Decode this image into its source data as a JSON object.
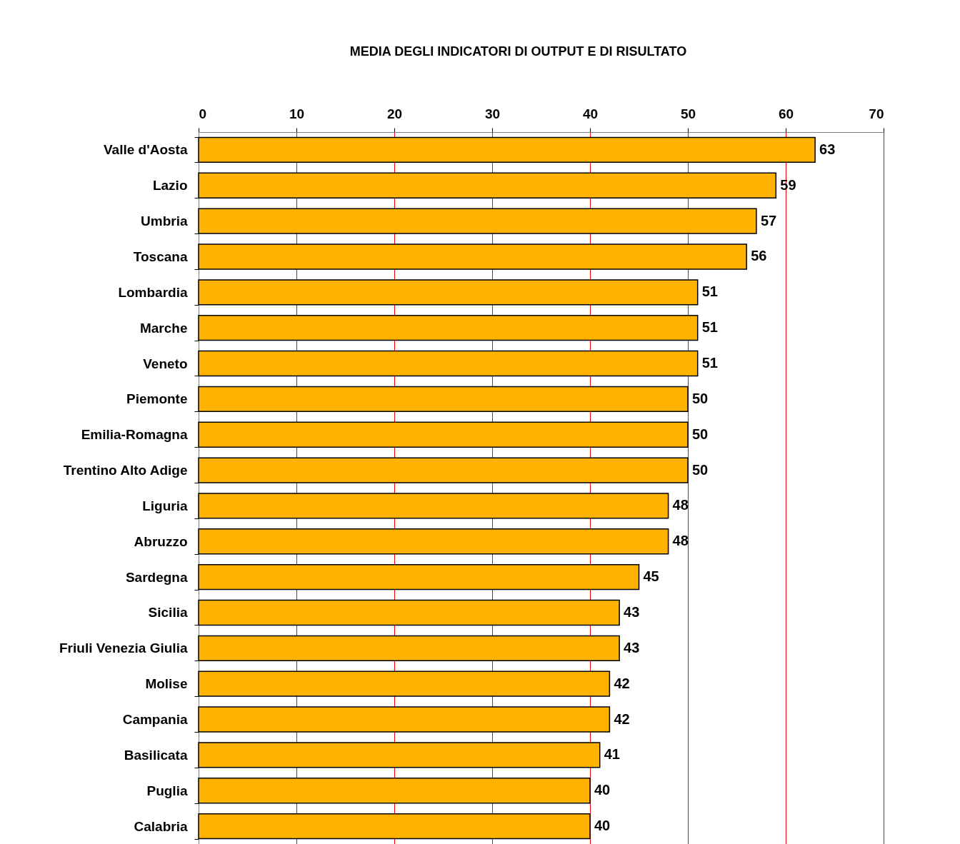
{
  "chart_data": {
    "type": "bar",
    "orientation": "horizontal",
    "title": "MEDIA DEGLI INDICATORI DI OUTPUT E DI RISULTATO",
    "categories": [
      "Valle d'Aosta",
      "Lazio",
      "Umbria",
      "Toscana",
      "Lombardia",
      "Marche",
      "Veneto",
      "Piemonte",
      "Emilia-Romagna",
      "Trentino Alto Adige",
      "Liguria",
      "Abruzzo",
      "Sardegna",
      "Sicilia",
      "Friuli Venezia Giulia",
      "Molise",
      "Campania",
      "Basilicata",
      "Puglia",
      "Calabria"
    ],
    "values": [
      63,
      59,
      57,
      56,
      51,
      51,
      51,
      50,
      50,
      50,
      48,
      48,
      45,
      43,
      43,
      42,
      42,
      41,
      40,
      40
    ],
    "color": "#ffb300",
    "xlim": [
      0,
      70
    ],
    "xticks": [
      0,
      10,
      20,
      30,
      40,
      50,
      60,
      70
    ],
    "grid": "x",
    "data_labels": true
  }
}
